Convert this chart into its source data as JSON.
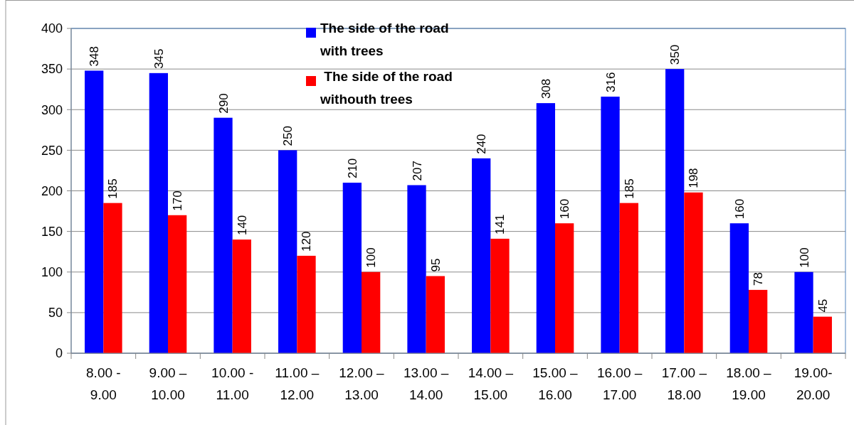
{
  "chart_data": {
    "type": "bar",
    "categories": [
      "8.00 -\n9.00",
      "9.00 –\n10.00",
      "10.00 -\n11.00",
      "11.00 –\n12.00",
      "12.00 –\n13.00",
      "13.00 –\n14.00",
      "14.00 –\n15.00",
      "15.00 –\n16.00",
      "16.00 –\n17.00",
      "17.00 –\n18.00",
      "18.00 –\n19.00",
      "19.00-\n20.00"
    ],
    "series": [
      {
        "name": "The side of the road\nwith trees",
        "color": "#0000ff",
        "values": [
          348,
          345,
          290,
          250,
          210,
          207,
          240,
          308,
          316,
          350,
          160,
          100
        ]
      },
      {
        "name": " The side of the road\nwithouth trees",
        "color": "#ff0000",
        "values": [
          185,
          170,
          140,
          120,
          100,
          95,
          141,
          160,
          185,
          198,
          78,
          45
        ]
      }
    ],
    "ylim": [
      0,
      400
    ],
    "yticks": [
      0,
      50,
      100,
      150,
      200,
      250,
      300,
      350,
      400
    ],
    "grid": "y",
    "legend": "top",
    "data_labels": true
  }
}
